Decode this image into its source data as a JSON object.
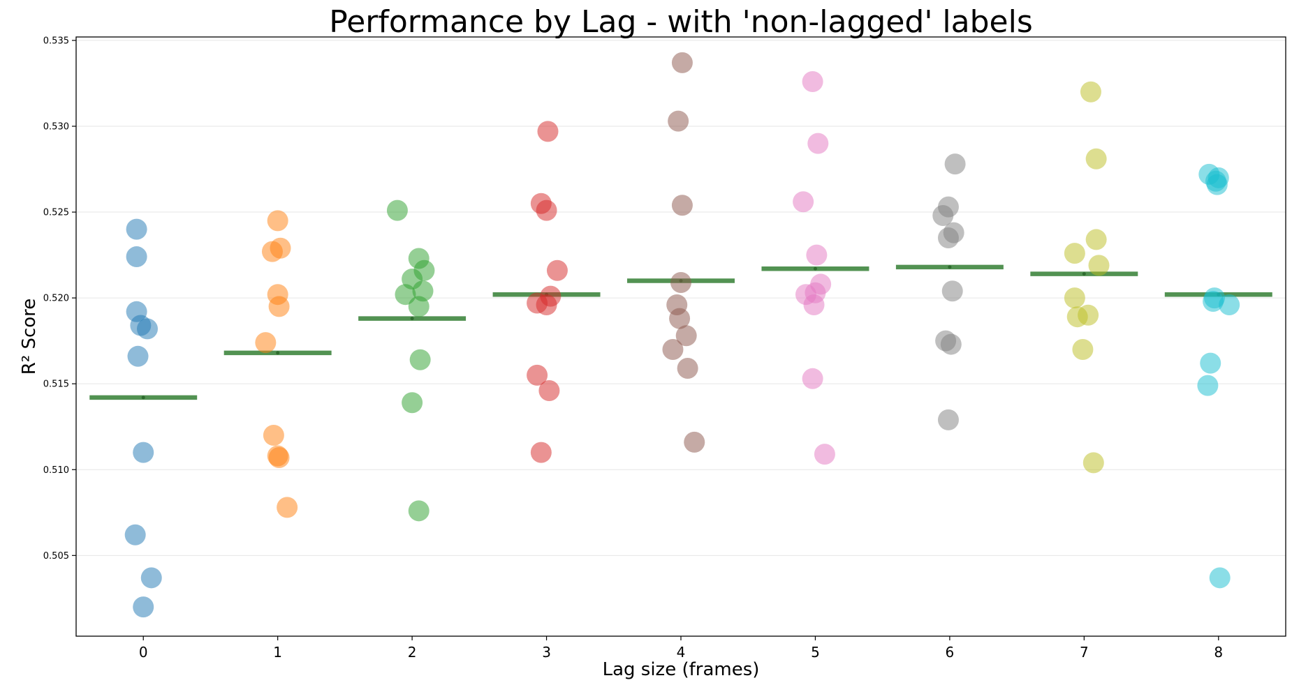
{
  "chart_data": {
    "type": "scatter",
    "title": "Performance by Lag - with 'non-lagged' labels",
    "xlabel": "Lag size (frames)",
    "ylabel": "R² Score",
    "categories": [
      "0",
      "1",
      "2",
      "3",
      "4",
      "5",
      "6",
      "7",
      "8"
    ],
    "yticks": [
      "0.505",
      "0.510",
      "0.515",
      "0.520",
      "0.525",
      "0.530",
      "0.535"
    ],
    "ylim": [
      0.5003,
      0.5352
    ],
    "xlim": [
      -0.5,
      8.5
    ],
    "grid": "horizontal",
    "mean_line_color": "#3f863f",
    "series": [
      {
        "color": "#1f77b4",
        "points": [
          [
            -0.05,
            0.524
          ],
          [
            -0.05,
            0.5224
          ],
          [
            -0.05,
            0.5192
          ],
          [
            -0.02,
            0.5184
          ],
          [
            0.03,
            0.5182
          ],
          [
            -0.04,
            0.5166
          ],
          [
            0.0,
            0.511
          ],
          [
            -0.06,
            0.5062
          ],
          [
            0.06,
            0.5037
          ],
          [
            0.0,
            0.502
          ]
        ],
        "mean": 0.5142
      },
      {
        "color": "#ff7f0e",
        "points": [
          [
            0.0,
            0.5245
          ],
          [
            0.02,
            0.5229
          ],
          [
            -0.04,
            0.5227
          ],
          [
            0.0,
            0.5202
          ],
          [
            0.01,
            0.5195
          ],
          [
            -0.09,
            0.5174
          ],
          [
            -0.03,
            0.512
          ],
          [
            0.0,
            0.5108
          ],
          [
            0.01,
            0.5107
          ],
          [
            0.07,
            0.5078
          ]
        ],
        "mean": 0.5168
      },
      {
        "color": "#2ca02c",
        "points": [
          [
            -0.11,
            0.5251
          ],
          [
            0.05,
            0.5223
          ],
          [
            0.09,
            0.5216
          ],
          [
            0.0,
            0.5211
          ],
          [
            0.08,
            0.5204
          ],
          [
            -0.05,
            0.5202
          ],
          [
            0.05,
            0.5195
          ],
          [
            0.06,
            0.5164
          ],
          [
            0.0,
            0.5139
          ],
          [
            0.05,
            0.5076
          ]
        ],
        "mean": 0.5188
      },
      {
        "color": "#d62728",
        "points": [
          [
            0.01,
            0.5297
          ],
          [
            -0.04,
            0.5255
          ],
          [
            0.0,
            0.5251
          ],
          [
            0.08,
            0.5216
          ],
          [
            0.03,
            0.5201
          ],
          [
            -0.07,
            0.5197
          ],
          [
            0.0,
            0.5196
          ],
          [
            -0.07,
            0.5155
          ],
          [
            0.02,
            0.5146
          ],
          [
            -0.04,
            0.511
          ]
        ],
        "mean": 0.5202
      },
      {
        "color": "#8c564b",
        "points": [
          [
            0.01,
            0.5337
          ],
          [
            -0.02,
            0.5303
          ],
          [
            0.01,
            0.5254
          ],
          [
            0.0,
            0.5209
          ],
          [
            -0.03,
            0.5196
          ],
          [
            -0.01,
            0.5188
          ],
          [
            0.04,
            0.5178
          ],
          [
            -0.06,
            0.517
          ],
          [
            0.05,
            0.5159
          ],
          [
            0.1,
            0.5116
          ]
        ],
        "mean": 0.521
      },
      {
        "color": "#e377c2",
        "points": [
          [
            -0.02,
            0.5326
          ],
          [
            0.02,
            0.529
          ],
          [
            -0.09,
            0.5256
          ],
          [
            0.01,
            0.5225
          ],
          [
            0.04,
            0.5208
          ],
          [
            0.0,
            0.5203
          ],
          [
            -0.07,
            0.5202
          ],
          [
            -0.01,
            0.5196
          ],
          [
            -0.02,
            0.5153
          ],
          [
            0.07,
            0.5109
          ]
        ],
        "mean": 0.5217
      },
      {
        "color": "#7f7f7f",
        "points": [
          [
            0.04,
            0.5278
          ],
          [
            -0.01,
            0.5253
          ],
          [
            -0.05,
            0.5248
          ],
          [
            0.03,
            0.5238
          ],
          [
            -0.01,
            0.5235
          ],
          [
            0.02,
            0.5204
          ],
          [
            -0.03,
            0.5175
          ],
          [
            0.01,
            0.5173
          ],
          [
            -0.01,
            0.5129
          ]
        ],
        "mean": 0.5218
      },
      {
        "color": "#bcbd22",
        "points": [
          [
            0.05,
            0.532
          ],
          [
            0.09,
            0.5281
          ],
          [
            0.09,
            0.5234
          ],
          [
            -0.07,
            0.5226
          ],
          [
            0.11,
            0.5219
          ],
          [
            -0.07,
            0.52
          ],
          [
            0.03,
            0.519
          ],
          [
            -0.05,
            0.5189
          ],
          [
            -0.01,
            0.517
          ],
          [
            0.07,
            0.5104
          ]
        ],
        "mean": 0.5214
      },
      {
        "color": "#17becf",
        "points": [
          [
            -0.07,
            0.5272
          ],
          [
            0.0,
            0.527
          ],
          [
            -0.02,
            0.5268
          ],
          [
            -0.01,
            0.5266
          ],
          [
            -0.03,
            0.52
          ],
          [
            -0.04,
            0.5198
          ],
          [
            0.08,
            0.5196
          ],
          [
            -0.06,
            0.5162
          ],
          [
            -0.08,
            0.5149
          ],
          [
            0.01,
            0.5037
          ]
        ],
        "mean": 0.5202
      }
    ]
  }
}
